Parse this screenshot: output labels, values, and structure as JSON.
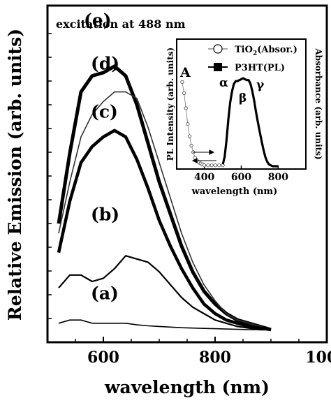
{
  "chart_data": [
    {
      "type": "line",
      "annotation": "excitation at 488 nm",
      "xlabel": "wavelength (nm)",
      "ylabel": "Relative Emission (arb. units)",
      "xlim": [
        500,
        1000
      ],
      "ylim": [
        0,
        1
      ],
      "xticks": [
        600,
        800,
        1000
      ],
      "grid": false,
      "series": [
        {
          "name": "(e)",
          "x": [
            520,
            540,
            560,
            580,
            600,
            620,
            640,
            660,
            680,
            700,
            720,
            740,
            760,
            780,
            800,
            820,
            840,
            860,
            880,
            900
          ],
          "y": [
            0.33,
            0.55,
            0.74,
            0.79,
            0.8,
            0.82,
            0.79,
            0.7,
            0.58,
            0.46,
            0.36,
            0.26,
            0.18,
            0.12,
            0.08,
            0.05,
            0.03,
            0.02,
            0.01,
            0.0
          ]
        },
        {
          "name": "(d)",
          "x": [
            520,
            540,
            560,
            580,
            600,
            620,
            640,
            660,
            680,
            700,
            720,
            740,
            760,
            780,
            800,
            820,
            840,
            860,
            880,
            900
          ],
          "y": [
            0.3,
            0.46,
            0.6,
            0.67,
            0.71,
            0.74,
            0.74,
            0.72,
            0.63,
            0.52,
            0.41,
            0.3,
            0.21,
            0.14,
            0.09,
            0.05,
            0.03,
            0.02,
            0.01,
            0.0
          ]
        },
        {
          "name": "(c)",
          "x": [
            520,
            540,
            560,
            580,
            600,
            620,
            640,
            660,
            680,
            700,
            720,
            740,
            760,
            780,
            800,
            820,
            840,
            860,
            880,
            900
          ],
          "y": [
            0.24,
            0.4,
            0.52,
            0.57,
            0.6,
            0.62,
            0.6,
            0.53,
            0.44,
            0.34,
            0.26,
            0.19,
            0.13,
            0.08,
            0.05,
            0.03,
            0.02,
            0.01,
            0.005,
            0.0
          ]
        },
        {
          "name": "(b)",
          "x": [
            520,
            540,
            560,
            580,
            600,
            620,
            640,
            660,
            680,
            700,
            720,
            740,
            760,
            780,
            800,
            820,
            840,
            860,
            880,
            900
          ],
          "y": [
            0.13,
            0.17,
            0.17,
            0.15,
            0.16,
            0.19,
            0.23,
            0.22,
            0.21,
            0.18,
            0.14,
            0.1,
            0.07,
            0.05,
            0.03,
            0.02,
            0.01,
            0.005,
            0.0,
            0.0
          ]
        },
        {
          "name": "(a)",
          "x": [
            520,
            540,
            560,
            580,
            600,
            620,
            640,
            660,
            680,
            700,
            720,
            740,
            760,
            780,
            800,
            820,
            840,
            860,
            880,
            900
          ],
          "y": [
            0.02,
            0.03,
            0.03,
            0.02,
            0.02,
            0.02,
            0.02,
            0.015,
            0.012,
            0.01,
            0.008,
            0.006,
            0.005,
            0.004,
            0.003,
            0.002,
            0.001,
            0.0,
            0.0,
            0.0
          ]
        }
      ]
    },
    {
      "type": "line",
      "panel_label": "A",
      "xlabel": "wavelength (nm)",
      "ylabel": "PL Intensity (arb. units)",
      "ylabel_right": "Absorbance (arb. units)",
      "xlim": [
        250,
        950
      ],
      "ylim": [
        0,
        1
      ],
      "xticks": [
        400,
        600,
        800
      ],
      "legend_position": "top",
      "peak_labels": [
        "α",
        "β",
        "γ"
      ],
      "series": [
        {
          "name": "TiO2(Absor.)",
          "name_base": "TiO",
          "name_sub": "2",
          "name_tail": "(Absor.)",
          "marker": "open-circle",
          "x": [
            280,
            290,
            300,
            310,
            320,
            330,
            340,
            350,
            360,
            370,
            380,
            390,
            400,
            420,
            440,
            460,
            480,
            500
          ],
          "y": [
            0.9,
            0.78,
            0.62,
            0.45,
            0.32,
            0.22,
            0.15,
            0.09,
            0.06,
            0.04,
            0.03,
            0.02,
            0.01,
            0.01,
            0.01,
            0.01,
            0.01,
            0.01
          ]
        },
        {
          "name": "P3HT(PL)",
          "marker": "filled-square",
          "x": [
            500,
            510,
            520,
            530,
            540,
            550,
            560,
            570,
            580,
            590,
            600,
            610,
            620,
            630,
            640,
            650,
            660,
            670,
            680,
            690,
            700,
            710,
            720,
            730,
            740,
            750,
            760,
            770,
            780,
            790,
            800
          ],
          "y": [
            0.02,
            0.1,
            0.28,
            0.5,
            0.68,
            0.8,
            0.88,
            0.91,
            0.91,
            0.92,
            0.93,
            0.94,
            0.93,
            0.92,
            0.92,
            0.88,
            0.8,
            0.7,
            0.58,
            0.47,
            0.37,
            0.27,
            0.18,
            0.1,
            0.05,
            0.02,
            0.01,
            0.0,
            0.0,
            0.0,
            0.0
          ]
        }
      ]
    }
  ]
}
